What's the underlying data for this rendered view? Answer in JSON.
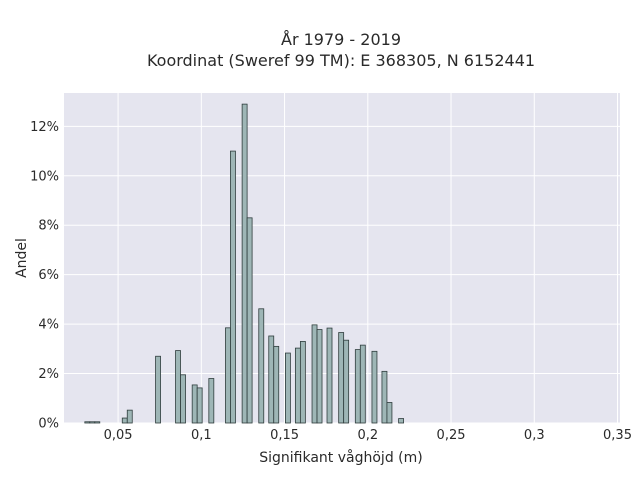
{
  "chart_data": {
    "type": "bar",
    "title_line1": "År 1979 - 2019",
    "title_line2": "Koordinat (Sweref 99 TM): E 368305, N 6152441",
    "xlabel": "Signifikant våghöjd (m)",
    "ylabel": "Andel",
    "xlim": [
      0.0175,
      0.3515
    ],
    "ylim": [
      0,
      0.1335
    ],
    "grid": true,
    "x_ticks": [
      {
        "value": 0.05,
        "label": "0,05"
      },
      {
        "value": 0.1,
        "label": "0,1"
      },
      {
        "value": 0.15,
        "label": "0,15"
      },
      {
        "value": 0.2,
        "label": "0,2"
      },
      {
        "value": 0.25,
        "label": "0,25"
      },
      {
        "value": 0.3,
        "label": "0,3"
      },
      {
        "value": 0.35,
        "label": "0,35"
      }
    ],
    "y_ticks": [
      {
        "value": 0,
        "label": "0%"
      },
      {
        "value": 0.02,
        "label": "2%"
      },
      {
        "value": 0.04,
        "label": "4%"
      },
      {
        "value": 0.06,
        "label": "6%"
      },
      {
        "value": 0.08,
        "label": "8%"
      },
      {
        "value": 0.1,
        "label": "10%"
      },
      {
        "value": 0.12,
        "label": "12%"
      }
    ],
    "bar_width": 0.003,
    "bars": [
      {
        "x": 0.03,
        "y": 0.0005
      },
      {
        "x": 0.033,
        "y": 0.0005
      },
      {
        "x": 0.036,
        "y": 0.0005
      },
      {
        "x": 0.0525,
        "y": 0.002
      },
      {
        "x": 0.0555,
        "y": 0.0052
      },
      {
        "x": 0.0725,
        "y": 0.027
      },
      {
        "x": 0.0785,
        "y": 0
      },
      {
        "x": 0.0845,
        "y": 0.0293
      },
      {
        "x": 0.0875,
        "y": 0.0195
      },
      {
        "x": 0.0945,
        "y": 0.0154
      },
      {
        "x": 0.0975,
        "y": 0.0142
      },
      {
        "x": 0.1045,
        "y": 0.018
      },
      {
        "x": 0.1145,
        "y": 0.0385
      },
      {
        "x": 0.1175,
        "y": 0.11
      },
      {
        "x": 0.1245,
        "y": 0.129
      },
      {
        "x": 0.1275,
        "y": 0.083
      },
      {
        "x": 0.1345,
        "y": 0.0462
      },
      {
        "x": 0.1405,
        "y": 0.0352
      },
      {
        "x": 0.1435,
        "y": 0.031
      },
      {
        "x": 0.1505,
        "y": 0.0283
      },
      {
        "x": 0.1565,
        "y": 0.0303
      },
      {
        "x": 0.1595,
        "y": 0.033
      },
      {
        "x": 0.1665,
        "y": 0.0397
      },
      {
        "x": 0.1695,
        "y": 0.0378
      },
      {
        "x": 0.1755,
        "y": 0.0384
      },
      {
        "x": 0.1825,
        "y": 0.0366
      },
      {
        "x": 0.1855,
        "y": 0.0335
      },
      {
        "x": 0.1925,
        "y": 0.0297
      },
      {
        "x": 0.1955,
        "y": 0.0315
      },
      {
        "x": 0.2025,
        "y": 0.029
      },
      {
        "x": 0.2085,
        "y": 0.0209
      },
      {
        "x": 0.2115,
        "y": 0.0083
      },
      {
        "x": 0.2185,
        "y": 0.0018
      }
    ],
    "colors": {
      "plot_bg": "#e5e5ef",
      "grid": "#ffffff",
      "bar_fill": "#9eb6b6",
      "bar_stroke": "#2f3d3d"
    }
  }
}
